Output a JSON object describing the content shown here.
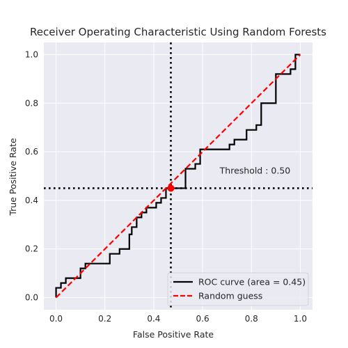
{
  "chart_data": {
    "type": "line",
    "title": "Receiver Operating Characteristic Using Random Forests",
    "xlabel": "False Positive Rate",
    "ylabel": "True Positive Rate",
    "xlim": [
      -0.05,
      1.05
    ],
    "ylim": [
      -0.05,
      1.05
    ],
    "xticks": [
      "0.0",
      "0.2",
      "0.4",
      "0.6",
      "0.8",
      "1.0"
    ],
    "yticks": [
      "0.0",
      "0.2",
      "0.4",
      "0.6",
      "0.8",
      "1.0"
    ],
    "grid": true,
    "legend_position": "lower-right",
    "series": [
      {
        "name": "ROC curve (area = 0.45)",
        "color": "#000000",
        "style": "solid",
        "x": [
          0.0,
          0.0,
          0.02,
          0.02,
          0.04,
          0.04,
          0.1,
          0.1,
          0.12,
          0.12,
          0.22,
          0.22,
          0.26,
          0.26,
          0.3,
          0.3,
          0.31,
          0.31,
          0.33,
          0.33,
          0.35,
          0.35,
          0.37,
          0.37,
          0.41,
          0.41,
          0.43,
          0.43,
          0.45,
          0.45,
          0.47,
          0.47,
          0.53,
          0.53,
          0.57,
          0.57,
          0.59,
          0.59,
          0.71,
          0.71,
          0.73,
          0.73,
          0.78,
          0.78,
          0.82,
          0.82,
          0.84,
          0.84,
          0.9,
          0.9,
          0.96,
          0.96,
          0.98,
          0.98,
          1.0
        ],
        "y": [
          0.0,
          0.04,
          0.04,
          0.06,
          0.06,
          0.08,
          0.08,
          0.12,
          0.12,
          0.14,
          0.14,
          0.18,
          0.18,
          0.2,
          0.2,
          0.26,
          0.26,
          0.29,
          0.29,
          0.33,
          0.33,
          0.35,
          0.35,
          0.37,
          0.37,
          0.39,
          0.39,
          0.41,
          0.41,
          0.45,
          0.45,
          0.45,
          0.45,
          0.53,
          0.53,
          0.55,
          0.55,
          0.61,
          0.61,
          0.63,
          0.63,
          0.65,
          0.65,
          0.69,
          0.69,
          0.71,
          0.71,
          0.8,
          0.8,
          0.92,
          0.92,
          0.94,
          0.94,
          1.0,
          1.0
        ]
      },
      {
        "name": "Random guess",
        "color": "#ff0000",
        "style": "dashed",
        "x": [
          0.0,
          1.0
        ],
        "y": [
          0.0,
          1.0
        ]
      }
    ],
    "threshold_point": {
      "x": 0.47,
      "y": 0.45,
      "color": "#ff0000"
    },
    "reference_lines": {
      "vertical_x": 0.47,
      "horizontal_y": 0.45,
      "style": "dotted",
      "color": "#000000"
    },
    "annotation": {
      "text": "Threshold : 0.50",
      "x": 0.67,
      "y": 0.51
    }
  }
}
